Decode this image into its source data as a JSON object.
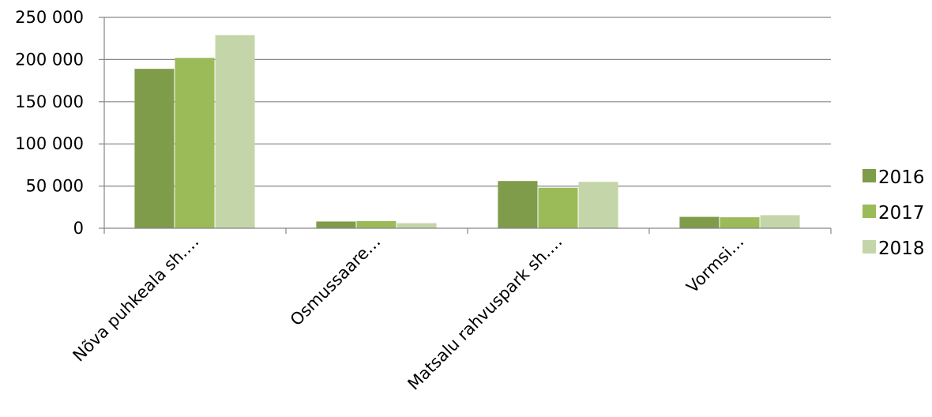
{
  "chart_data": {
    "type": "bar",
    "categories": [
      "Nõva puhkeala sh.…",
      "Osmussaare…",
      "Matsalu rahvuspark sh.…",
      "Vormsi…"
    ],
    "series": [
      {
        "name": "2016",
        "color": "#7F9C4A",
        "values": [
          189000,
          8000,
          56000,
          13500
        ]
      },
      {
        "name": "2017",
        "color": "#9BBB59",
        "values": [
          202000,
          8500,
          48000,
          13000
        ]
      },
      {
        "name": "2018",
        "color": "#C4D6A9",
        "values": [
          229000,
          6000,
          55000,
          15500
        ]
      }
    ],
    "ylim": [
      0,
      250000
    ],
    "y_ticks": [
      0,
      50000,
      100000,
      150000,
      200000,
      250000
    ],
    "y_tick_labels": [
      "0",
      "50 000",
      "100 000",
      "150 000",
      "200 000",
      "250 000"
    ],
    "grid": true,
    "legend_position": "right",
    "gridline_color": "#868686",
    "title": "",
    "xlabel": "",
    "ylabel": ""
  }
}
